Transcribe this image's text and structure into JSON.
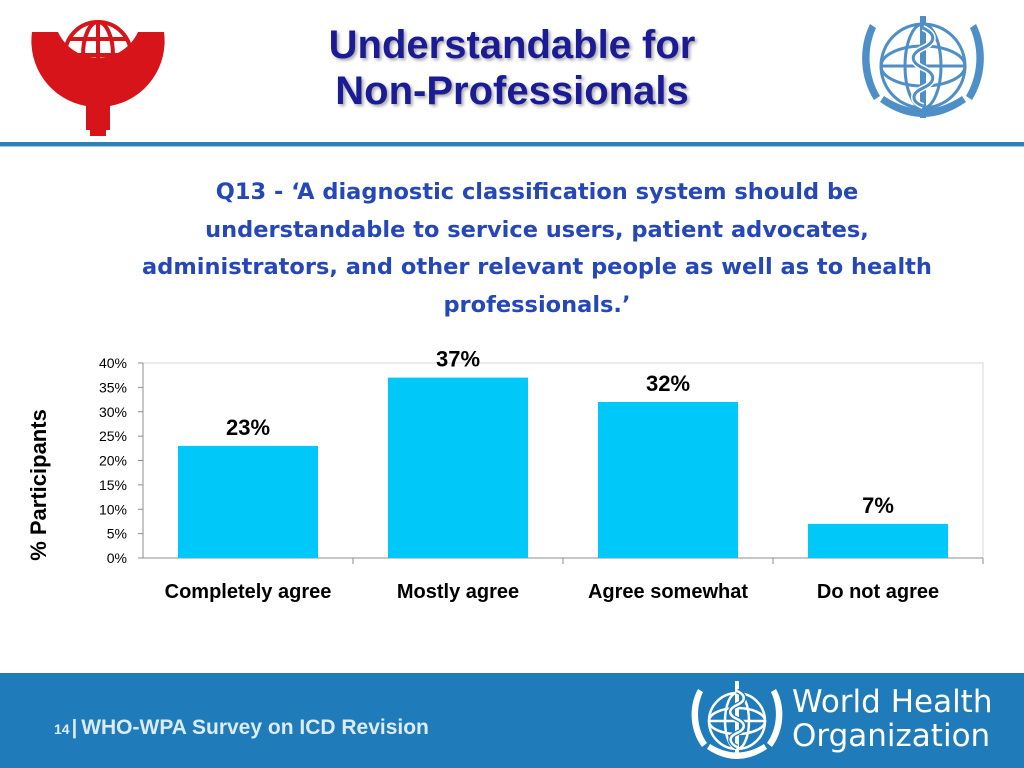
{
  "title": {
    "line1": "Understandable for",
    "line2": "Non-Professionals"
  },
  "question": "Q13 - ‘A diagnostic classification system should be understandable to service users, patient advocates, administrators, and other relevant people as well as to health professionals.’",
  "logos": {
    "wpa": {
      "icon": "wpa-globe-cross-icon",
      "colors": {
        "red": "#d8141b"
      }
    },
    "who_top": {
      "icon": "who-emblem-icon",
      "colors": {
        "blue": "#4f8fc8"
      }
    }
  },
  "chart_data": {
    "type": "bar",
    "categories": [
      "Completely agree",
      "Mostly agree",
      "Agree somewhat",
      "Do not agree"
    ],
    "values": [
      23,
      37,
      32,
      7
    ],
    "data_labels": [
      "23%",
      "37%",
      "32%",
      "7%"
    ],
    "xlabel": "",
    "ylabel": "%  Participants",
    "ylim": [
      0,
      40
    ],
    "yticks": [
      "0%",
      "5%",
      "10%",
      "15%",
      "20%",
      "25%",
      "30%",
      "35%",
      "40%"
    ],
    "grid": false,
    "bar_color": "#00c8f8"
  },
  "footer": {
    "page_number": "14",
    "separator": "|",
    "text": "WHO-WPA Survey on ICD Revision",
    "org_line1": "World Health",
    "org_line2": "Organization",
    "icon": "who-emblem-icon",
    "colors": {
      "background": "#1f7bb9"
    }
  }
}
